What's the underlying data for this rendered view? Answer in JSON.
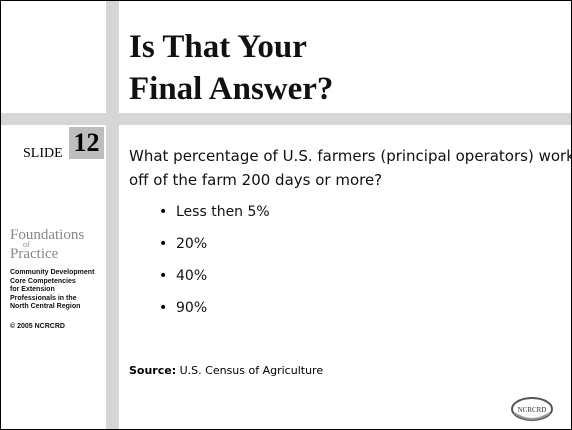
{
  "slide": {
    "title": [
      "Is That Your",
      "Final Answer?"
    ],
    "slide_label": "SLIDE",
    "slide_number": "12",
    "brand": {
      "line1": "Foundations",
      "of": "of",
      "line2": "Practice"
    },
    "credits": [
      "Community Development",
      "Core Competencies",
      "for Extension",
      "Professionals in the",
      "North Central Region"
    ],
    "copyright": "© 2005 NCRCRD",
    "question": [
      "What percentage of U.S. farmers (principal operators) work",
      "off of the farm 200 days or more?"
    ],
    "options": [
      "Less then 5%",
      "20%",
      "40%",
      "90%"
    ],
    "source_label": "Source:",
    "source_text": "U.S. Census of Agriculture",
    "logo": "NCRCRD"
  }
}
